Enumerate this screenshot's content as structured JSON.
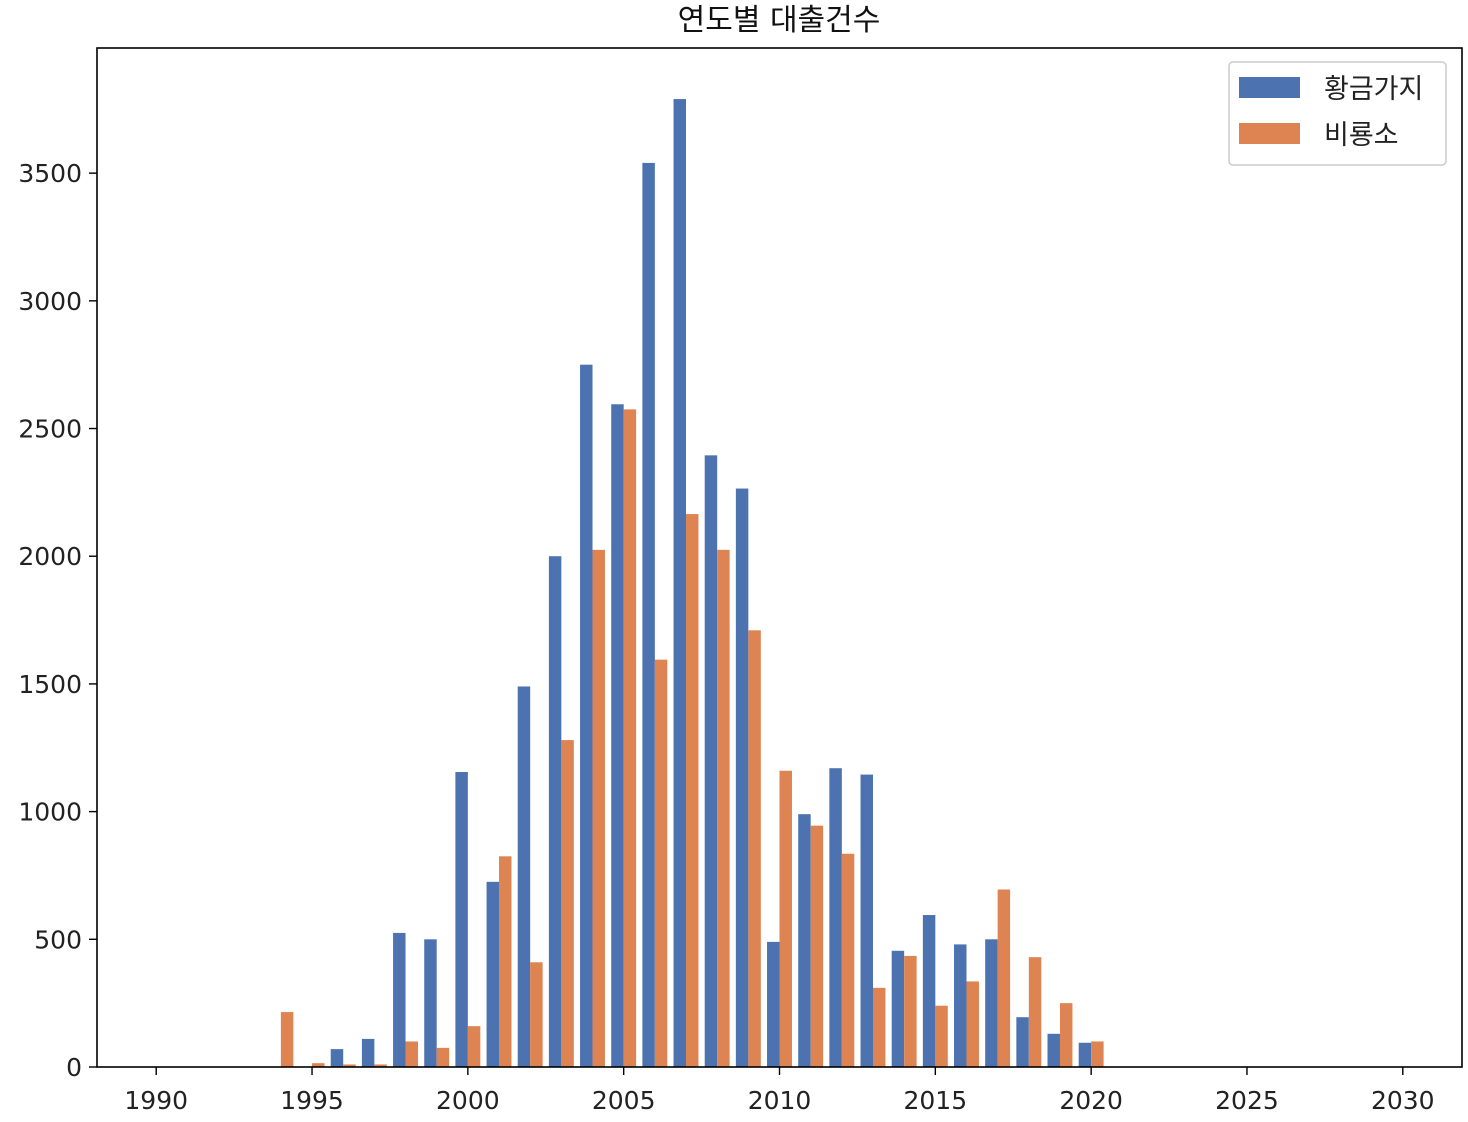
{
  "chart_data": {
    "type": "bar",
    "title": "연도별 대출건수",
    "xlabel": "",
    "ylabel": "",
    "xlim": [
      1988.1,
      2031.9
    ],
    "ylim": [
      0,
      3990
    ],
    "xticks": [
      "1990",
      "1995",
      "2000",
      "2005",
      "2010",
      "2015",
      "2020",
      "2025",
      "2030"
    ],
    "yticks": [
      "0",
      "500",
      "1000",
      "1500",
      "2000",
      "2500",
      "3000",
      "3500"
    ],
    "legend_position": "upper right",
    "grid": false,
    "x": [
      1994,
      1995,
      1996,
      1997,
      1998,
      1999,
      2000,
      2001,
      2002,
      2003,
      2004,
      2005,
      2006,
      2007,
      2008,
      2009,
      2010,
      2011,
      2012,
      2013,
      2014,
      2015,
      2016,
      2017,
      2018,
      2019,
      2020
    ],
    "series": [
      {
        "name": "황금가지",
        "color": "#4c72b0",
        "values": [
          0,
          0,
          70,
          110,
          525,
          500,
          1155,
          725,
          1490,
          2000,
          2750,
          2595,
          3540,
          3790,
          2395,
          2265,
          490,
          990,
          1170,
          1145,
          455,
          595,
          480,
          500,
          195,
          130,
          95
        ]
      },
      {
        "name": "비룡소",
        "color": "#dd8452",
        "values": [
          215,
          15,
          10,
          10,
          100,
          75,
          160,
          825,
          410,
          1280,
          2025,
          2575,
          1595,
          2165,
          2025,
          1710,
          1160,
          945,
          835,
          310,
          435,
          240,
          335,
          695,
          430,
          250,
          100
        ]
      }
    ]
  }
}
